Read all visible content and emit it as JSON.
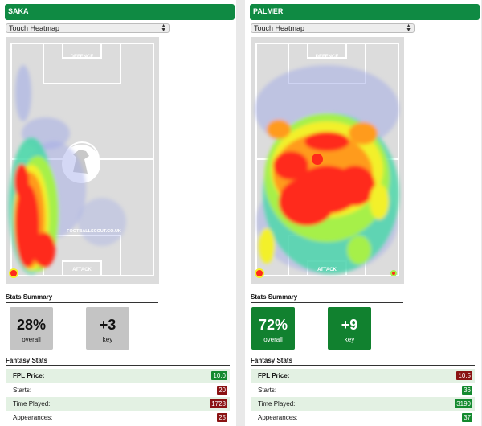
{
  "players": [
    {
      "name": "SAKA",
      "dropdown": "Touch Heatmap",
      "pitch_labels": {
        "top": "DEFENCE",
        "bottom": "ATTACK",
        "watermark": "FOOTBALLSCOUT.CO.UK"
      },
      "stats_summary_title": "Stats Summary",
      "stats": [
        {
          "value": "28%",
          "label": "overall",
          "style": "grey"
        },
        {
          "value": "+3",
          "label": "key",
          "style": "grey"
        }
      ],
      "fantasy_title": "Fantasy Stats",
      "fantasy": [
        {
          "label": "FPL Price:",
          "value": "10.0",
          "color": "green"
        },
        {
          "label": "Starts:",
          "value": "20",
          "color": "red"
        },
        {
          "label": "Time Played:",
          "value": "1728",
          "color": "red"
        },
        {
          "label": "Appearances:",
          "value": "25",
          "color": "red"
        }
      ]
    },
    {
      "name": "PALMER",
      "dropdown": "Touch Heatmap",
      "pitch_labels": {
        "top": "DEFENCE",
        "bottom": "ATTACK",
        "watermark": ""
      },
      "stats_summary_title": "Stats Summary",
      "stats": [
        {
          "value": "72%",
          "label": "overall",
          "style": "green"
        },
        {
          "value": "+9",
          "label": "key",
          "style": "green"
        }
      ],
      "fantasy_title": "Fantasy Stats",
      "fantasy": [
        {
          "label": "FPL Price:",
          "value": "10.5",
          "color": "red"
        },
        {
          "label": "Starts:",
          "value": "36",
          "color": "green"
        },
        {
          "label": "Time Played:",
          "value": "3190",
          "color": "green"
        },
        {
          "label": "Appearances:",
          "value": "37",
          "color": "green"
        }
      ]
    }
  ],
  "colors": {
    "header": "#0f8a43",
    "value_green": "#148a2f",
    "value_red": "#8a1313"
  }
}
